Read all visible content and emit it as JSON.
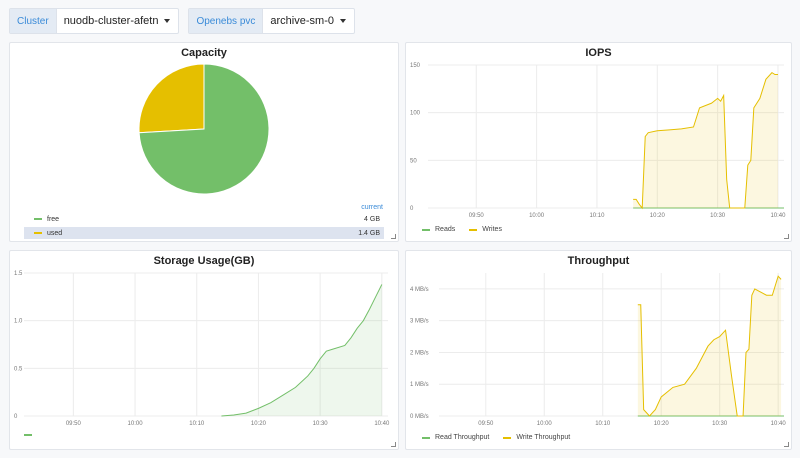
{
  "variables": [
    {
      "label": "Cluster",
      "value": "nuodb-cluster-afetn"
    },
    {
      "label": "Openebs pvc",
      "value": "archive-sm-0"
    }
  ],
  "colors": {
    "green": "#73bf69",
    "yellow": "#e5bf00",
    "grid": "#ececec",
    "accent": "#3a8bd8"
  },
  "panels": {
    "capacity": {
      "title": "Capacity",
      "legend_header": "current",
      "items": [
        {
          "label": "free",
          "value": "4 GB",
          "color": "#73bf69"
        },
        {
          "label": "used",
          "value": "1.4 GB",
          "color": "#e5bf00"
        }
      ]
    },
    "iops": {
      "title": "IOPS",
      "legend": [
        {
          "label": "Reads",
          "color": "#73bf69"
        },
        {
          "label": "Writes",
          "color": "#e5bf00"
        }
      ]
    },
    "storage": {
      "title": "Storage Usage(GB)",
      "legend": [
        {
          "label": "",
          "color": "#73bf69"
        }
      ]
    },
    "throughput": {
      "title": "Throughput",
      "legend": [
        {
          "label": "Read Throughput",
          "color": "#73bf69"
        },
        {
          "label": "Write Throughput",
          "color": "#e5bf00"
        }
      ]
    }
  },
  "chart_data": [
    {
      "type": "pie",
      "title": "Capacity",
      "categories": [
        "free",
        "used"
      ],
      "values": [
        4,
        1.4
      ],
      "colors": [
        "#73bf69",
        "#e5bf00"
      ]
    },
    {
      "type": "area",
      "title": "IOPS",
      "x_ticks": [
        "09:50",
        "10:00",
        "10:10",
        "10:20",
        "10:30",
        "10:40"
      ],
      "y_ticks": [
        "0",
        "50",
        "100",
        "150"
      ],
      "ylim": [
        0,
        150
      ],
      "xlim": [
        "09:42",
        "10:41"
      ],
      "series": [
        {
          "name": "Reads",
          "color": "#73bf69",
          "x": [
            "10:16",
            "10:41"
          ],
          "y": [
            0,
            0
          ]
        },
        {
          "name": "Writes",
          "color": "#e5bf00",
          "x": [
            "10:16",
            "10:16.5",
            "10:17",
            "10:17.5",
            "10:18",
            "10:18.5",
            "10:20",
            "10:22",
            "10:24",
            "10:26",
            "10:27",
            "10:29",
            "10:30",
            "10:30.5",
            "10:31",
            "10:31.5",
            "10:32",
            "10:33",
            "10:34",
            "10:34.5",
            "10:35",
            "10:35.5",
            "10:36",
            "10:37",
            "10:38",
            "10:39",
            "10:39.5",
            "10:40"
          ],
          "y": [
            9,
            9,
            4,
            0,
            75,
            79,
            81,
            82,
            83,
            85,
            105,
            110,
            115,
            112,
            118,
            30,
            0,
            0,
            0,
            0,
            45,
            50,
            105,
            115,
            135,
            142,
            140,
            140
          ]
        }
      ]
    },
    {
      "type": "area",
      "title": "Storage Usage(GB)",
      "x_ticks": [
        "09:50",
        "10:00",
        "10:10",
        "10:20",
        "10:30",
        "10:40"
      ],
      "y_ticks": [
        "0",
        "0.5",
        "1.0",
        "1.5"
      ],
      "ylim": [
        0,
        1.5
      ],
      "xlim": [
        "09:42",
        "10:41"
      ],
      "series": [
        {
          "name": "",
          "color": "#73bf69",
          "x": [
            "10:14",
            "10:16",
            "10:18",
            "10:20",
            "10:22",
            "10:24",
            "10:26",
            "10:28",
            "10:29",
            "10:30",
            "10:31",
            "10:32",
            "10:34",
            "10:35",
            "10:36",
            "10:37",
            "10:38",
            "10:39",
            "10:40"
          ],
          "y": [
            0,
            0.01,
            0.03,
            0.08,
            0.14,
            0.22,
            0.3,
            0.42,
            0.5,
            0.6,
            0.68,
            0.7,
            0.74,
            0.82,
            0.92,
            1.0,
            1.12,
            1.25,
            1.38
          ]
        }
      ]
    },
    {
      "type": "area",
      "title": "Throughput",
      "x_ticks": [
        "09:50",
        "10:00",
        "10:10",
        "10:20",
        "10:30",
        "10:40"
      ],
      "y_ticks": [
        "0 MB/s",
        "1 MB/s",
        "2 MB/s",
        "3 MB/s",
        "4 MB/s"
      ],
      "ylim": [
        0,
        4.5
      ],
      "xlim": [
        "09:42",
        "10:41"
      ],
      "series": [
        {
          "name": "Read Throughput",
          "color": "#73bf69",
          "x": [
            "10:16",
            "10:41"
          ],
          "y": [
            0,
            0
          ]
        },
        {
          "name": "Write Throughput",
          "color": "#e5bf00",
          "x": [
            "10:16",
            "10:16.5",
            "10:17",
            "10:18",
            "10:19",
            "10:20",
            "10:22",
            "10:24",
            "10:26",
            "10:28",
            "10:29",
            "10:30",
            "10:31",
            "10:32",
            "10:33",
            "10:34",
            "10:34.5",
            "10:35",
            "10:35.5",
            "10:36",
            "10:37",
            "10:38",
            "10:39",
            "10:40",
            "10:40.5"
          ],
          "y": [
            3.5,
            3.5,
            0.2,
            0,
            0.2,
            0.6,
            0.9,
            1.0,
            1.5,
            2.2,
            2.4,
            2.5,
            2.7,
            1.3,
            0,
            0,
            2.0,
            2.1,
            3.8,
            4.0,
            3.9,
            3.8,
            3.8,
            4.4,
            4.3
          ]
        }
      ]
    }
  ]
}
